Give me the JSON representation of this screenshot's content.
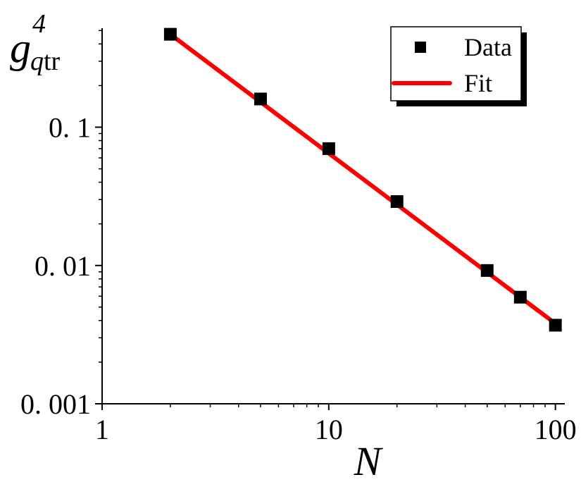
{
  "chart_data": {
    "type": "scatter",
    "title": "",
    "xlabel": "N",
    "ylabel": {
      "base": "g",
      "superscript": "4",
      "subscript_italic": "q",
      "subscript_roman": "tr"
    },
    "xscale": "log",
    "yscale": "log",
    "xlim": [
      1,
      110
    ],
    "ylim": [
      0.001,
      0.52
    ],
    "x_ticks": [
      {
        "value": 1,
        "label": "1"
      },
      {
        "value": 10,
        "label": "10"
      },
      {
        "value": 100,
        "label": "100"
      }
    ],
    "y_ticks": [
      {
        "value": 0.001,
        "label": "0. 001"
      },
      {
        "value": 0.01,
        "label": "0. 01"
      },
      {
        "value": 0.1,
        "label": "0. 1"
      }
    ],
    "grid": false,
    "legend": {
      "position": "top-right",
      "entries": [
        {
          "label": "Data",
          "marker": "square",
          "color": "#000000"
        },
        {
          "label": "Fit",
          "marker": "line",
          "color": "#ff0000"
        }
      ]
    },
    "series": [
      {
        "name": "Data",
        "kind": "markers",
        "color": "#000000",
        "points": [
          {
            "x": 2,
            "y": 0.47
          },
          {
            "x": 5,
            "y": 0.16
          },
          {
            "x": 10,
            "y": 0.07
          },
          {
            "x": 20,
            "y": 0.029
          },
          {
            "x": 50,
            "y": 0.0092
          },
          {
            "x": 70,
            "y": 0.0059
          },
          {
            "x": 100,
            "y": 0.0037
          }
        ]
      },
      {
        "name": "Fit",
        "kind": "line",
        "color": "#ff0000",
        "points": [
          {
            "x": 2,
            "y": 0.47
          },
          {
            "x": 100,
            "y": 0.0038
          }
        ]
      }
    ]
  }
}
